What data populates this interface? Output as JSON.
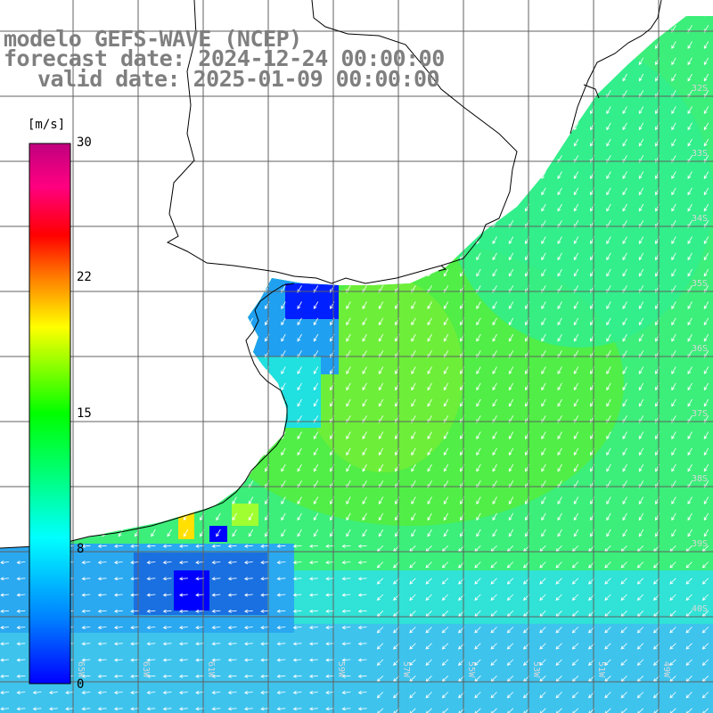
{
  "title": {
    "line1": "modelo GEFS-WAVE (NCEP)",
    "line2": "forecast date: 2024-12-24 00:00:00",
    "line3": "valid date: 2025-01-09 00:00:00"
  },
  "colorbar": {
    "unit": "[m/s]",
    "ticks": [
      "30",
      "22",
      "15",
      "8",
      "0"
    ],
    "tick_values": [
      30,
      22,
      15,
      8,
      0
    ],
    "colors": [
      "#0000ff",
      "#0080ff",
      "#00ffff",
      "#00ff80",
      "#00ff00",
      "#80ff00",
      "#ffff00",
      "#ff8000",
      "#ff0000",
      "#ff0080",
      "#c0007f"
    ]
  },
  "map": {
    "lat_labels": [
      "32S",
      "33S",
      "34S",
      "35S",
      "36S",
      "37S",
      "38S",
      "39S",
      "40S"
    ],
    "lat_values": [
      -32,
      -33,
      -34,
      -35,
      -36,
      -37,
      -38,
      -39,
      -40
    ],
    "lon_labels": [
      "65W",
      "63W",
      "61W",
      "59W",
      "57W",
      "55W",
      "53W",
      "51W",
      "49W"
    ],
    "lon_values": [
      -65,
      -63,
      -61,
      -59,
      -57,
      -55,
      -53,
      -51,
      -49
    ],
    "land_color": "#ffffff",
    "grid_color": "#606060"
  },
  "chart_data": {
    "type": "heatmap",
    "variable": "wind speed",
    "units": "m/s",
    "zlim": [
      0,
      30
    ],
    "vectors": "wind direction arrows (from NE toward SW offshore, easterly near 40S coast)",
    "features": [
      {
        "area": "open ocean 36S-39S, 56W-52W",
        "value": 14
      },
      {
        "area": "Rio de la Plata estuary",
        "value": 4
      },
      {
        "area": "coastal southern Brazil",
        "value": 10
      },
      {
        "area": "south coast near 40S",
        "value": 6
      }
    ]
  }
}
